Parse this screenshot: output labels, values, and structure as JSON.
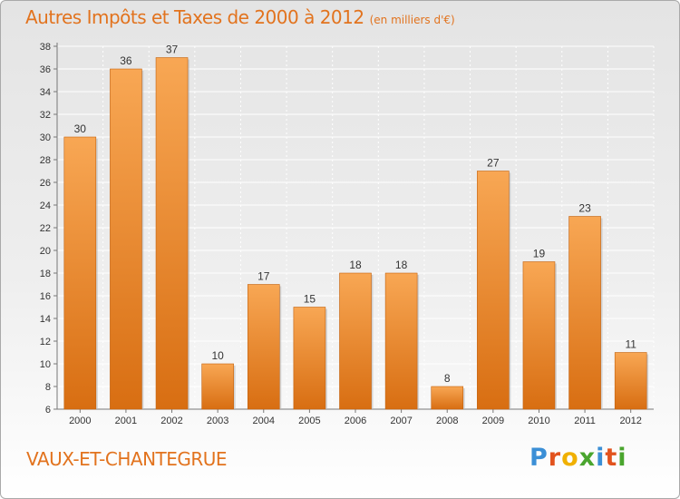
{
  "header": {
    "title": "Autres Impôts et Taxes de 2000 à 2012",
    "subtitle": "(en milliers d'€)"
  },
  "commune": "VAUX-ET-CHANTEGRUE",
  "logo": {
    "letters": [
      "P",
      "r",
      "o",
      "x",
      "i",
      "t",
      "i"
    ],
    "colors": [
      "#3b8fd6",
      "#e2531e",
      "#f0b000",
      "#4aa52e",
      "#3b8fd6",
      "#e2531e",
      "#4aa52e"
    ]
  },
  "colors": {
    "bar_top": "#f8a754",
    "bar_bottom": "#d86e12",
    "bar_edge": "#c2610e",
    "title": "#e2731e"
  },
  "chart_data": {
    "type": "bar",
    "title": "Autres Impôts et Taxes de 2000 à 2012",
    "subtitle": "(en milliers d'€)",
    "categories": [
      "2000",
      "2001",
      "2002",
      "2003",
      "2004",
      "2005",
      "2006",
      "2007",
      "2008",
      "2009",
      "2010",
      "2011",
      "2012"
    ],
    "values": [
      30,
      36,
      37,
      10,
      17,
      15,
      18,
      18,
      8,
      27,
      19,
      23,
      11
    ],
    "ylim": [
      6,
      38
    ],
    "yticks": [
      6,
      8,
      10,
      12,
      14,
      16,
      18,
      20,
      22,
      24,
      26,
      28,
      30,
      32,
      34,
      36,
      38
    ],
    "grid": true,
    "xlabel": "",
    "ylabel": ""
  }
}
